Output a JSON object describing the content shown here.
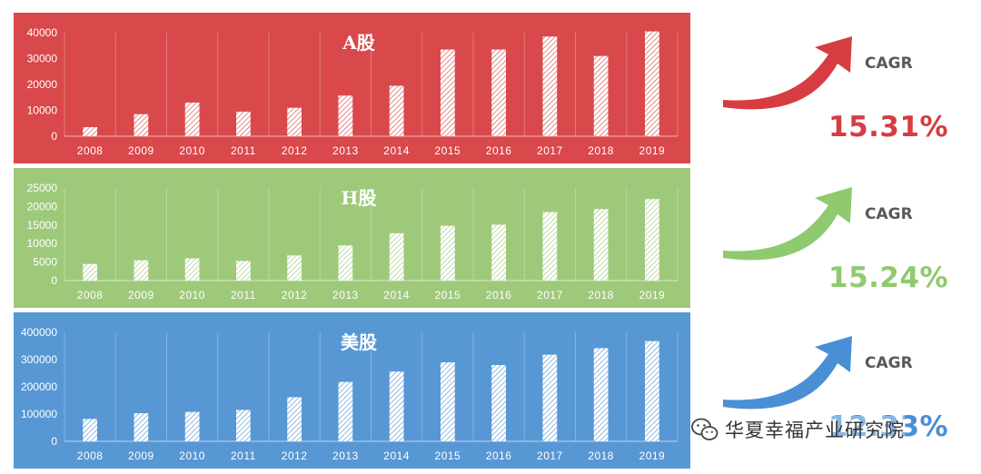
{
  "chart_data": [
    {
      "type": "bar",
      "title": "A股",
      "categories": [
        "2008",
        "2009",
        "2010",
        "2011",
        "2012",
        "2013",
        "2014",
        "2015",
        "2016",
        "2017",
        "2018",
        "2019"
      ],
      "values": [
        3500,
        8500,
        13000,
        9500,
        11000,
        15700,
        19500,
        33500,
        33500,
        38500,
        31000,
        40500
      ],
      "yticks": [
        0,
        10000,
        20000,
        30000,
        40000
      ],
      "ylim": [
        0,
        40000
      ],
      "xlabel": "",
      "ylabel": "",
      "grid": "vertical",
      "background": "#d9484b"
    },
    {
      "type": "bar",
      "title": "H股",
      "categories": [
        "2008",
        "2009",
        "2010",
        "2011",
        "2012",
        "2013",
        "2014",
        "2015",
        "2016",
        "2017",
        "2018",
        "2019"
      ],
      "values": [
        4500,
        5500,
        6000,
        5300,
        6800,
        9500,
        12800,
        14800,
        15100,
        18500,
        19300,
        22000
      ],
      "yticks": [
        0,
        5000,
        10000,
        15000,
        20000,
        25000
      ],
      "ylim": [
        0,
        25000
      ],
      "xlabel": "",
      "ylabel": "",
      "grid": "vertical",
      "background": "#9ec97a"
    },
    {
      "type": "bar",
      "title": "美股",
      "categories": [
        "2008",
        "2009",
        "2010",
        "2011",
        "2012",
        "2013",
        "2014",
        "2015",
        "2016",
        "2017",
        "2018",
        "2019"
      ],
      "values": [
        82000,
        103000,
        108000,
        115000,
        162000,
        218000,
        256000,
        290000,
        280000,
        318000,
        342000,
        368000
      ],
      "yticks": [
        0,
        100000,
        200000,
        300000,
        400000
      ],
      "ylim": [
        0,
        400000
      ],
      "xlabel": "",
      "ylabel": "",
      "grid": "vertical",
      "background": "#5797d4"
    }
  ],
  "cagr": [
    {
      "label": "CAGR",
      "value": "15.31%",
      "color": "#d63c41"
    },
    {
      "label": "CAGR",
      "value": "15.24%",
      "color": "#8fca6e"
    },
    {
      "label": "CAGR",
      "value": "12.33%",
      "color": "#4a8fd6"
    }
  ],
  "watermark": {
    "text": "华夏幸福产业研究院",
    "icon": "wechat-icon"
  }
}
